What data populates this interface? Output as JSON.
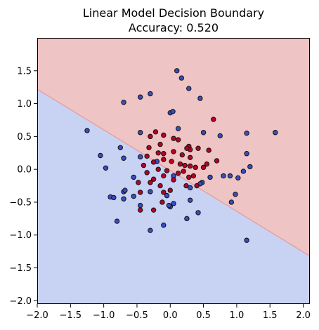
{
  "chart_data": {
    "type": "scatter",
    "title_lines": [
      "Linear Model Decision Boundary",
      "Accuracy: 0.520"
    ],
    "xlabel": "",
    "ylabel": "",
    "xlim": [
      -2.0,
      2.1
    ],
    "ylim": [
      -2.05,
      2.0
    ],
    "x_ticks": [
      -2.0,
      -1.5,
      -1.0,
      -0.5,
      0.0,
      0.5,
      1.0,
      1.5,
      2.0
    ],
    "x_tick_labels": [
      "−2.0",
      "−1.5",
      "−1.0",
      "−0.5",
      "0.0",
      "0.5",
      "1.0",
      "1.5",
      "2.0"
    ],
    "y_ticks": [
      -2.0,
      -1.5,
      -1.0,
      -0.5,
      0.0,
      0.5,
      1.0,
      1.5
    ],
    "y_tick_labels": [
      "−2.0",
      "−1.5",
      "−1.0",
      "−0.5",
      "0.0",
      "0.5",
      "1.0",
      "1.5"
    ],
    "grid": false,
    "decision_boundary": {
      "points": [
        [
          -2.0,
          1.22
        ],
        [
          2.1,
          -1.32
        ]
      ],
      "upper_region_color": "#efc4c4",
      "lower_region_color": "#c8d2f3",
      "boundary_color": "#e69a9a"
    },
    "point_style": {
      "edge_color": "#111111"
    },
    "series": [
      {
        "color": "#3a4cc0",
        "points": [
          [
            0.1,
            1.5
          ],
          [
            0.17,
            1.39
          ],
          [
            -0.7,
            1.02
          ],
          [
            -0.3,
            1.15
          ],
          [
            -0.45,
            1.1
          ],
          [
            0.28,
            1.23
          ],
          [
            0.45,
            1.08
          ],
          [
            -1.25,
            0.59
          ],
          [
            -1.05,
            0.21
          ],
          [
            -0.97,
            0.02
          ],
          [
            -0.75,
            0.33
          ],
          [
            -0.7,
            0.17
          ],
          [
            -0.45,
            0.56
          ],
          [
            -0.45,
            0.19
          ],
          [
            -0.2,
            0.12
          ],
          [
            0.0,
            0.86
          ],
          [
            0.04,
            0.88
          ],
          [
            0.12,
            0.62
          ],
          [
            0.5,
            0.56
          ],
          [
            0.75,
            0.51
          ],
          [
            1.15,
            0.55
          ],
          [
            1.58,
            0.56
          ],
          [
            1.15,
            0.24
          ],
          [
            1.2,
            0.04
          ],
          [
            1.1,
            -0.03
          ],
          [
            1.02,
            -0.13
          ],
          [
            0.9,
            -0.1
          ],
          [
            0.8,
            -0.1
          ],
          [
            0.6,
            -0.12
          ],
          [
            0.48,
            -0.2
          ],
          [
            0.45,
            -0.22
          ],
          [
            0.3,
            -0.28
          ],
          [
            -0.9,
            -0.42
          ],
          [
            -0.85,
            -0.43
          ],
          [
            -0.7,
            -0.34
          ],
          [
            -0.68,
            -0.32
          ],
          [
            -0.7,
            -0.45
          ],
          [
            -0.55,
            -0.41
          ],
          [
            -0.45,
            -0.55
          ],
          [
            -0.3,
            -0.34
          ],
          [
            -0.05,
            -0.4
          ],
          [
            0.05,
            -0.1
          ],
          [
            0.05,
            -0.52
          ],
          [
            0.0,
            -0.57
          ],
          [
            -0.02,
            -0.55
          ],
          [
            0.3,
            -0.47
          ],
          [
            0.25,
            -0.75
          ],
          [
            0.42,
            -0.66
          ],
          [
            -0.1,
            -0.85
          ],
          [
            -0.3,
            -0.93
          ],
          [
            -0.8,
            -0.79
          ],
          [
            1.15,
            -1.08
          ],
          [
            0.98,
            -0.38
          ],
          [
            0.92,
            -0.5
          ],
          [
            -0.55,
            -0.12
          ]
        ]
      },
      {
        "color": "#b40426",
        "points": [
          [
            0.65,
            0.76
          ],
          [
            -0.22,
            0.57
          ],
          [
            -0.1,
            0.52
          ],
          [
            -0.3,
            0.5
          ],
          [
            0.05,
            0.47
          ],
          [
            0.12,
            0.45
          ],
          [
            -0.15,
            0.38
          ],
          [
            0.28,
            0.35
          ],
          [
            0.3,
            0.3
          ],
          [
            0.25,
            0.32
          ],
          [
            0.42,
            0.32
          ],
          [
            0.58,
            0.29
          ],
          [
            -0.32,
            0.33
          ],
          [
            -0.18,
            0.25
          ],
          [
            -0.1,
            0.24
          ],
          [
            0.05,
            0.27
          ],
          [
            -0.35,
            0.2
          ],
          [
            0.18,
            0.22
          ],
          [
            0.3,
            0.18
          ],
          [
            -0.1,
            0.15
          ],
          [
            0.02,
            0.12
          ],
          [
            -0.25,
            0.11
          ],
          [
            0.15,
            0.08
          ],
          [
            0.22,
            0.06
          ],
          [
            -0.4,
            0.06
          ],
          [
            0.3,
            0.05
          ],
          [
            0.38,
            0.03
          ],
          [
            0.5,
            0.03
          ],
          [
            -0.18,
            0.0
          ],
          [
            -0.05,
            -0.02
          ],
          [
            0.2,
            -0.03
          ],
          [
            0.12,
            -0.06
          ],
          [
            0.35,
            -0.1
          ],
          [
            -0.35,
            -0.05
          ],
          [
            0.28,
            -0.12
          ],
          [
            -0.25,
            -0.15
          ],
          [
            -0.1,
            -0.1
          ],
          [
            0.05,
            -0.16
          ],
          [
            -0.48,
            -0.2
          ],
          [
            -0.3,
            -0.2
          ],
          [
            -0.15,
            -0.25
          ],
          [
            0.24,
            -0.25
          ],
          [
            0.4,
            -0.25
          ],
          [
            -0.45,
            -0.35
          ],
          [
            -0.1,
            -0.35
          ],
          [
            0.0,
            -0.32
          ],
          [
            -0.45,
            -0.62
          ],
          [
            -0.25,
            -0.62
          ],
          [
            -0.12,
            -0.5
          ],
          [
            0.55,
            0.08
          ],
          [
            0.7,
            0.13
          ]
        ]
      }
    ]
  }
}
